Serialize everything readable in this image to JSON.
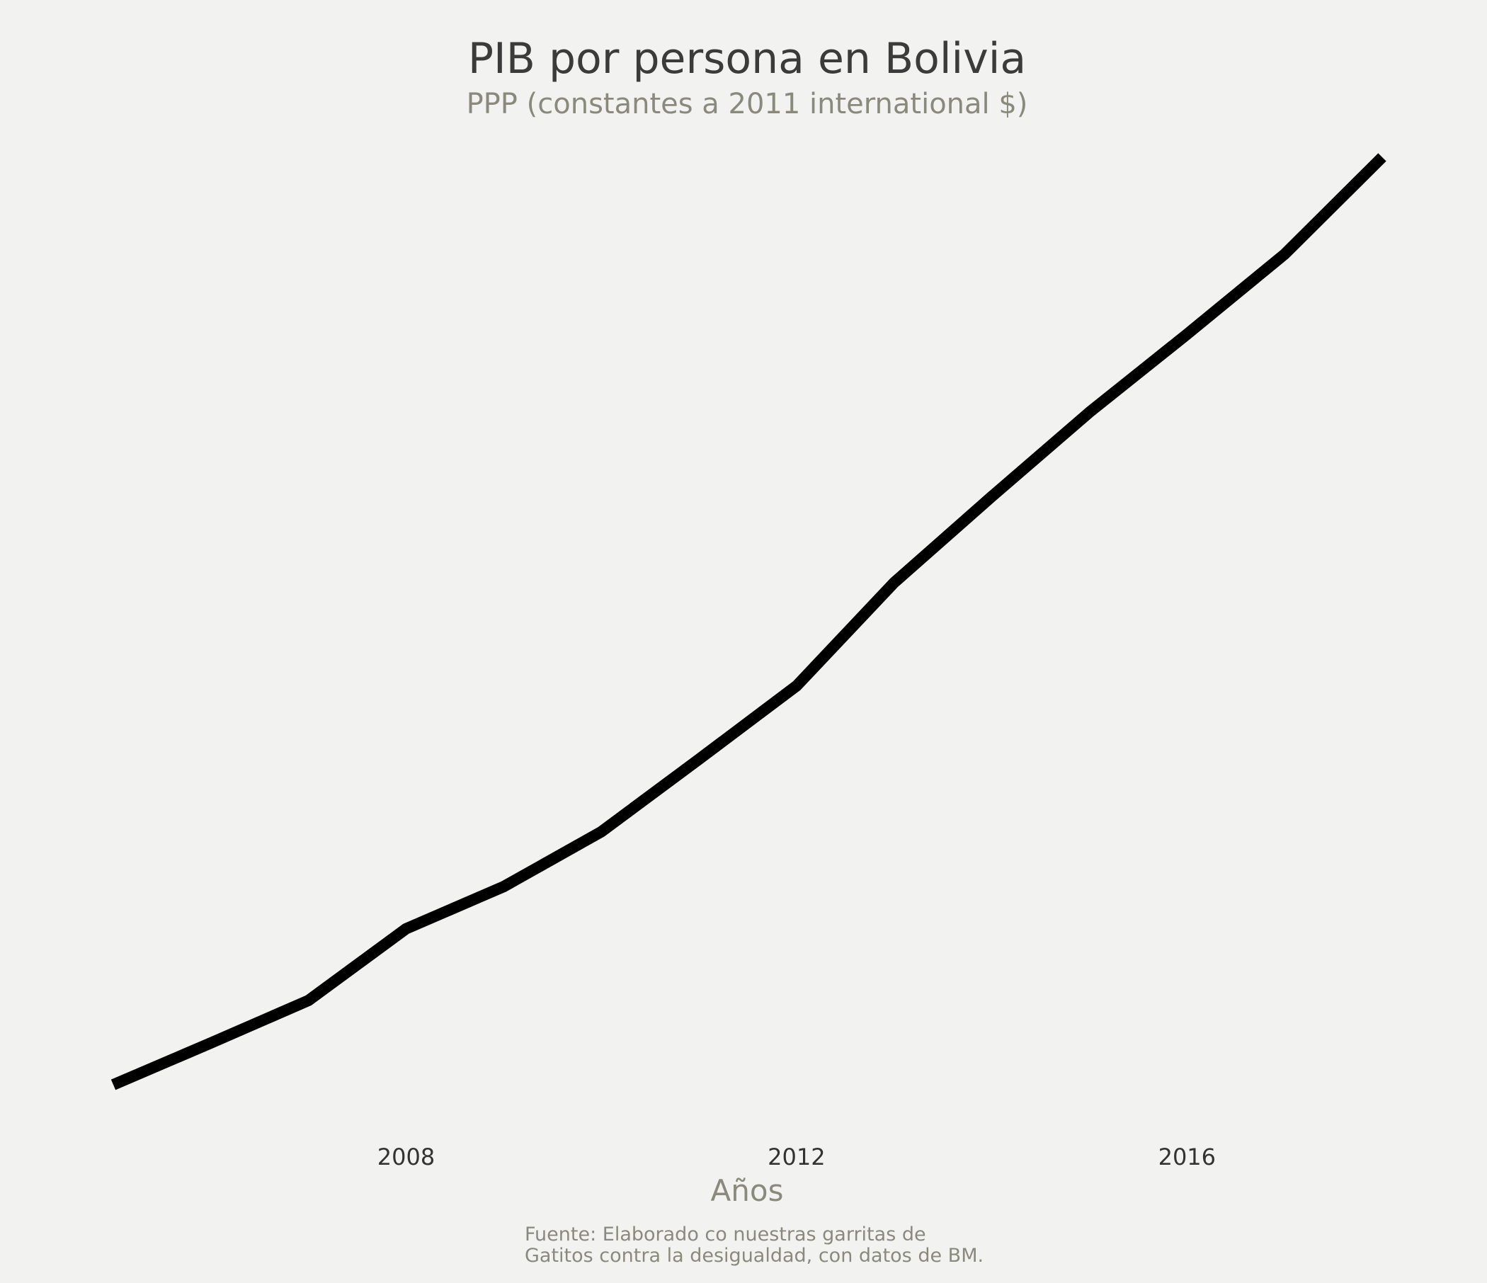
{
  "chart_data": {
    "type": "line",
    "title": "PIB por persona en Bolivia",
    "subtitle": "PPP (constantes a 2011 international $)",
    "xlabel": "Años",
    "ylabel": "",
    "x_ticks": [
      "2008",
      "2012",
      "2016"
    ],
    "xlim": [
      2005,
      2018
    ],
    "ylim": [
      5000,
      7200
    ],
    "grid": false,
    "legend": "none",
    "caption_lines": [
      "Fuente: Elaborado co nuestras garritas de",
      "Gatitos contra la desigualdad, con datos de BM."
    ],
    "series": [
      {
        "color": "#000000",
        "x": [
          2005,
          2006,
          2007,
          2008,
          2009,
          2010,
          2011,
          2012,
          2013,
          2014,
          2015,
          2016,
          2017,
          2018
        ],
        "y": [
          5000,
          5099,
          5200,
          5370,
          5470,
          5600,
          5772,
          5946,
          6191,
          6395,
          6595,
          6780,
          6970,
          7200
        ]
      }
    ]
  }
}
